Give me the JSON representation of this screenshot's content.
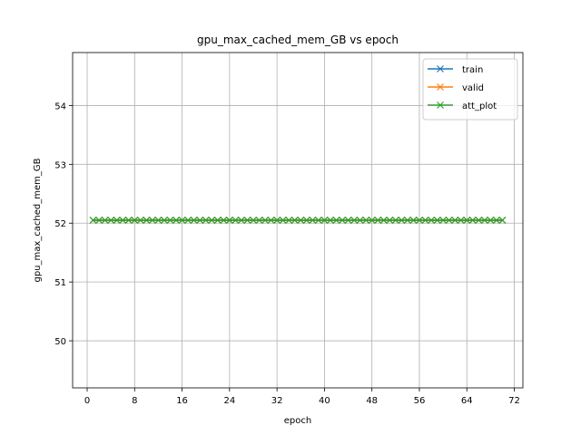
{
  "chart_data": {
    "type": "line",
    "title": "gpu_max_cached_mem_GB vs epoch",
    "xlabel": "epoch",
    "ylabel": "gpu_max_cached_mem_GB",
    "xlim": [
      -2.45,
      73.45
    ],
    "ylim": [
      49.2,
      54.9
    ],
    "xticks": [
      0,
      8,
      16,
      24,
      32,
      40,
      48,
      56,
      64,
      72
    ],
    "yticks": [
      50,
      51,
      52,
      53,
      54
    ],
    "grid": true,
    "legend_position": "top-right",
    "x": [
      1,
      2,
      3,
      4,
      5,
      6,
      7,
      8,
      9,
      10,
      11,
      12,
      13,
      14,
      15,
      16,
      17,
      18,
      19,
      20,
      21,
      22,
      23,
      24,
      25,
      26,
      27,
      28,
      29,
      30,
      31,
      32,
      33,
      34,
      35,
      36,
      37,
      38,
      39,
      40,
      41,
      42,
      43,
      44,
      45,
      46,
      47,
      48,
      49,
      50,
      51,
      52,
      53,
      54,
      55,
      56,
      57,
      58,
      59,
      60,
      61,
      62,
      63,
      64,
      65,
      66,
      67,
      68,
      69,
      70
    ],
    "series": [
      {
        "name": "train",
        "color": "#1f77b4",
        "marker": "x",
        "value": 52.05
      },
      {
        "name": "valid",
        "color": "#ff7f0e",
        "marker": "x",
        "value": 52.05
      },
      {
        "name": "att_plot",
        "color": "#2ca02c",
        "marker": "x",
        "value": 52.05
      }
    ]
  }
}
